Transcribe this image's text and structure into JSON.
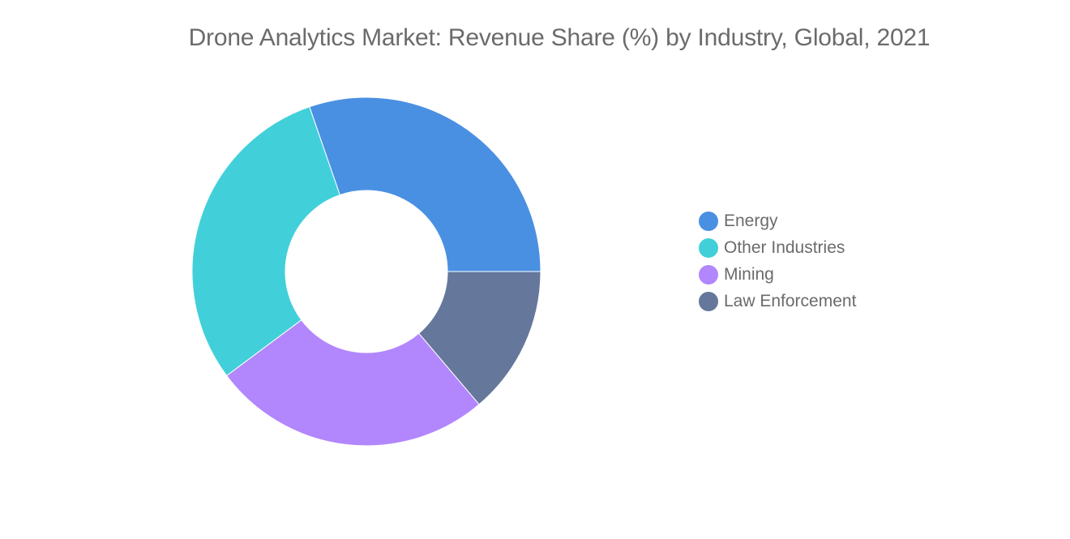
{
  "chart_data": {
    "type": "pie",
    "title": "Drone Analytics Market: Revenue Share (%) by Industry, Global, 2021",
    "donut": true,
    "legend_position": "right",
    "series": [
      {
        "name": "Energy",
        "value": 30.3,
        "color": "#4a90e2"
      },
      {
        "name": "Other Industries",
        "value": 29.9,
        "color": "#41d0d9"
      },
      {
        "name": "Mining",
        "value": 26.0,
        "color": "#b286fd"
      },
      {
        "name": "Law Enforcement",
        "value": 13.8,
        "color": "#65779b"
      }
    ]
  }
}
